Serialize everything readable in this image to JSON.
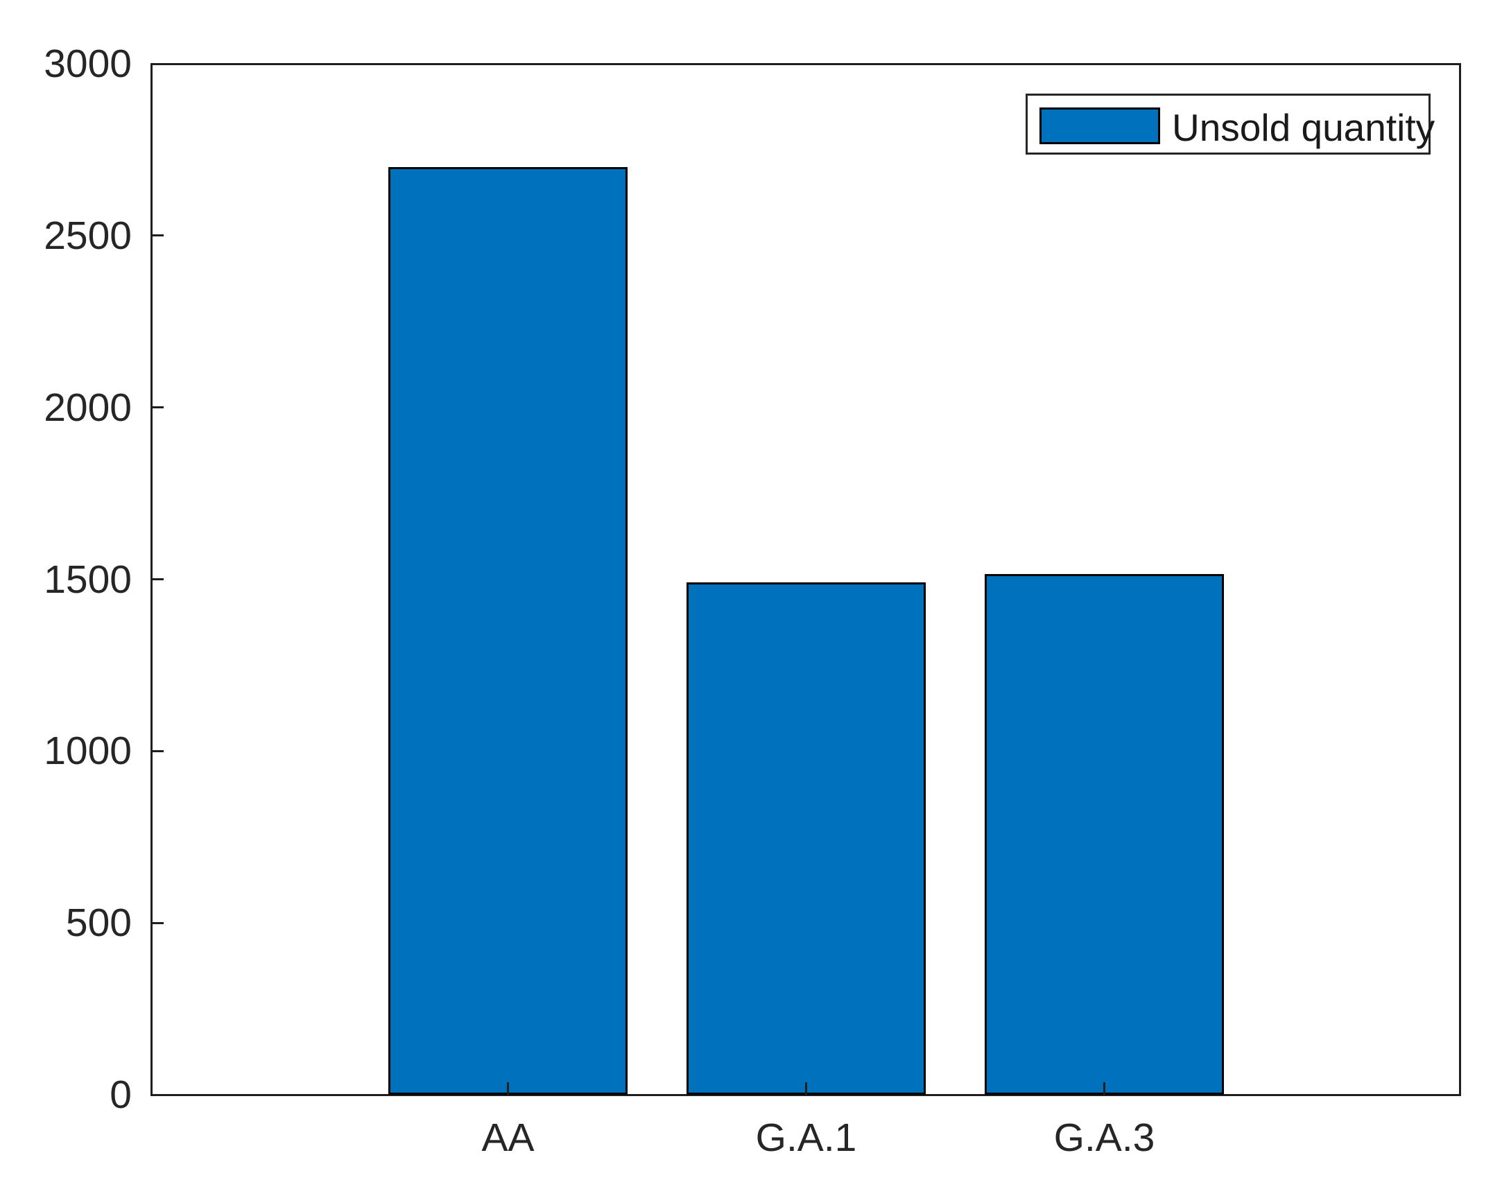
{
  "chart_data": {
    "type": "bar",
    "title": "",
    "xlabel": "",
    "ylabel": "",
    "categories": [
      "AA",
      "G.A.1",
      "G.A.3"
    ],
    "series": [
      {
        "name": "Unsold quantity",
        "values": [
          2700,
          1490,
          1515
        ]
      }
    ],
    "ylim": [
      0,
      3000
    ],
    "yticks": [
      0,
      500,
      1000,
      1500,
      2000,
      2500,
      3000
    ],
    "grid": false,
    "legend": {
      "position": "top-right",
      "entries": [
        "Unsold quantity"
      ]
    },
    "colors": {
      "bar_fill": "#0072BD",
      "bar_edge": "#000000",
      "axis": "#1f1f1f",
      "text": "#262626",
      "background": "#ffffff"
    }
  }
}
